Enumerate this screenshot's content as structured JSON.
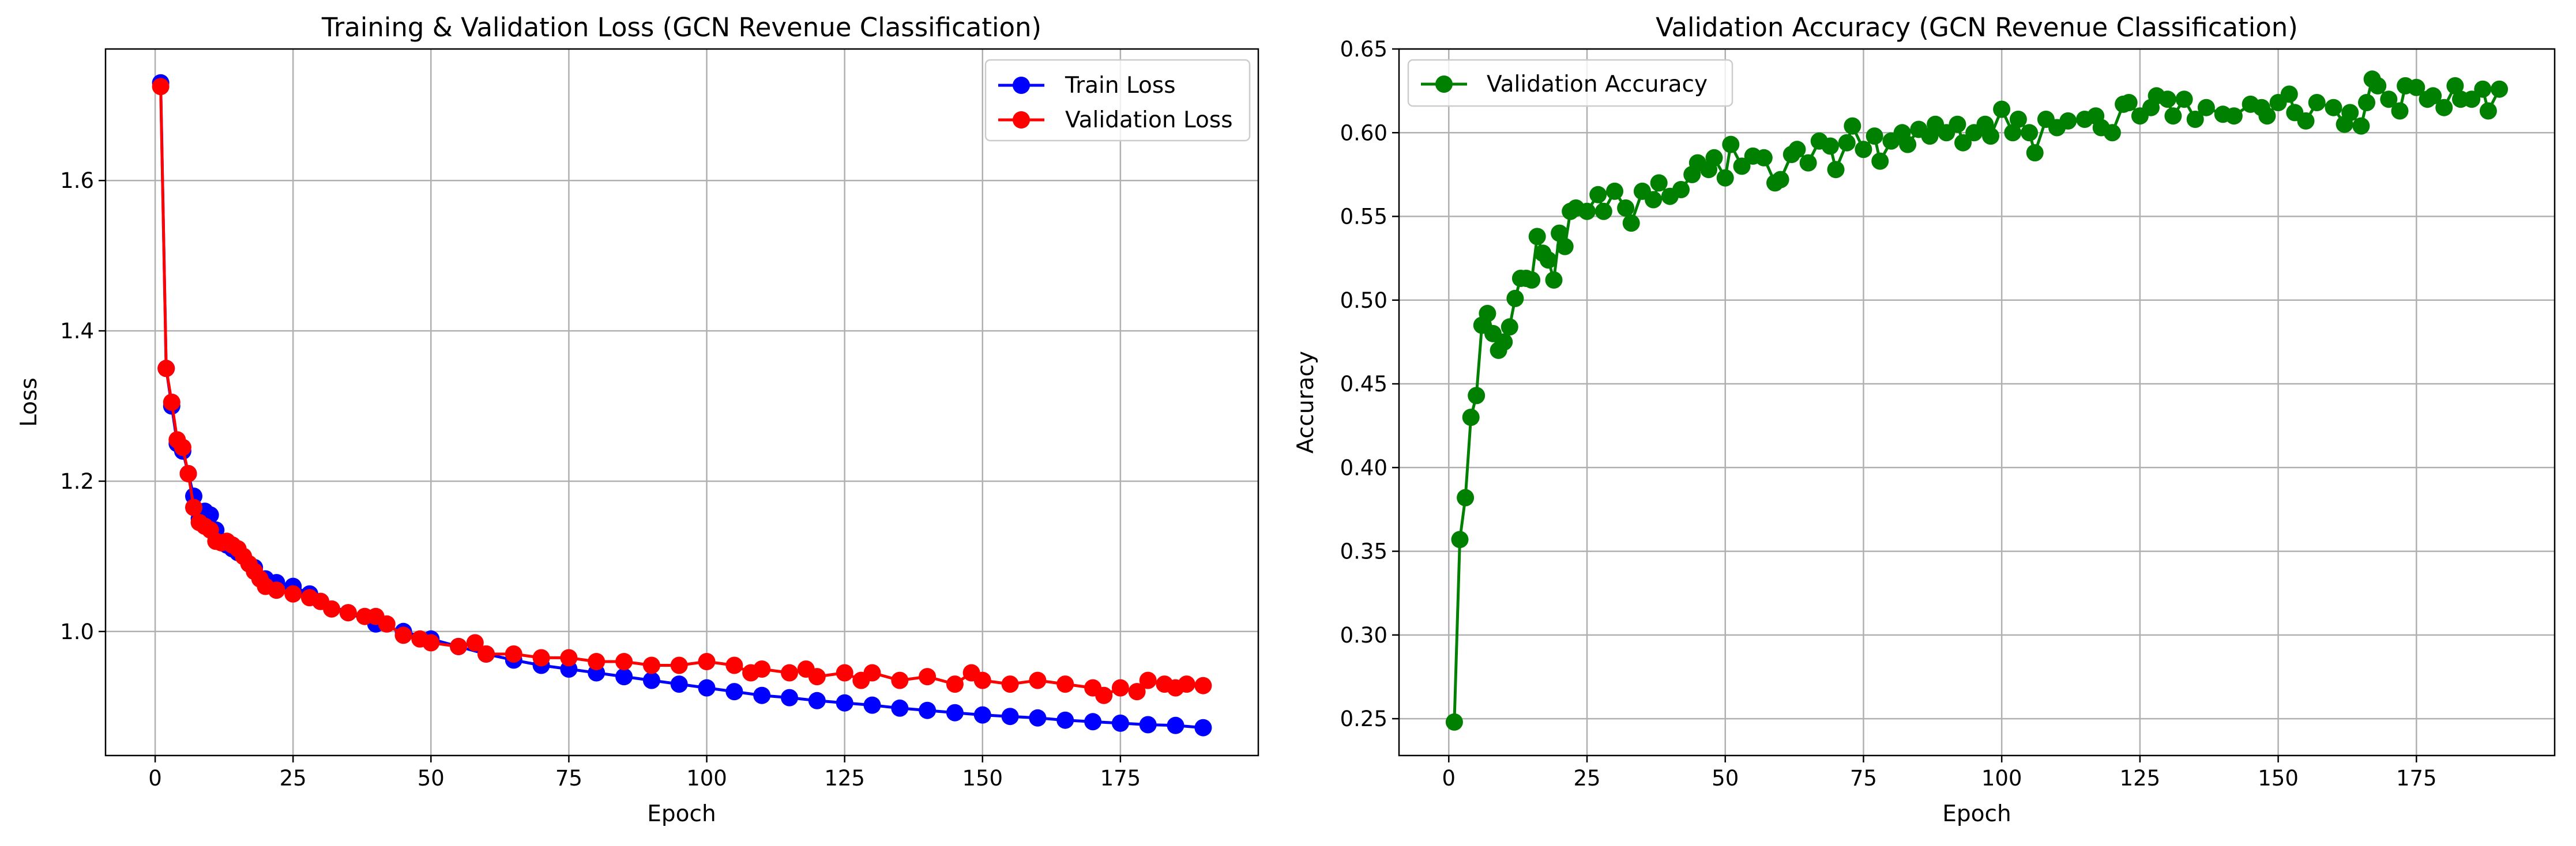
{
  "chart_data": [
    {
      "type": "line",
      "title": "Training & Validation Loss (GCN Revenue Classification)",
      "xlabel": "Epoch",
      "ylabel": "Loss",
      "xlim": [
        -9,
        200
      ],
      "ylim": [
        0.835,
        1.775
      ],
      "xticks": [
        0,
        25,
        50,
        75,
        100,
        125,
        150,
        175
      ],
      "yticks": [
        1.0,
        1.2,
        1.4,
        1.6
      ],
      "ytick_format": 1,
      "grid": true,
      "legend": "top-right",
      "series": [
        {
          "name": "Train Loss",
          "color": "#0000ff",
          "points": [
            [
              1,
              1.73
            ],
            [
              2,
              1.35
            ],
            [
              3,
              1.3
            ],
            [
              4,
              1.25
            ],
            [
              5,
              1.24
            ],
            [
              6,
              1.21
            ],
            [
              7,
              1.18
            ],
            [
              8,
              1.15
            ],
            [
              9,
              1.16
            ],
            [
              10,
              1.155
            ],
            [
              11,
              1.135
            ],
            [
              12,
              1.12
            ],
            [
              13,
              1.115
            ],
            [
              14,
              1.11
            ],
            [
              15,
              1.105
            ],
            [
              18,
              1.085
            ],
            [
              20,
              1.07
            ],
            [
              22,
              1.065
            ],
            [
              25,
              1.06
            ],
            [
              28,
              1.05
            ],
            [
              30,
              1.04
            ],
            [
              35,
              1.025
            ],
            [
              40,
              1.01
            ],
            [
              45,
              1.0
            ],
            [
              50,
              0.99
            ],
            [
              55,
              0.98
            ],
            [
              60,
              0.97
            ],
            [
              65,
              0.962
            ],
            [
              70,
              0.955
            ],
            [
              75,
              0.95
            ],
            [
              80,
              0.945
            ],
            [
              85,
              0.94
            ],
            [
              90,
              0.935
            ],
            [
              95,
              0.93
            ],
            [
              100,
              0.925
            ],
            [
              105,
              0.92
            ],
            [
              110,
              0.915
            ],
            [
              115,
              0.912
            ],
            [
              120,
              0.908
            ],
            [
              125,
              0.905
            ],
            [
              130,
              0.902
            ],
            [
              135,
              0.898
            ],
            [
              140,
              0.895
            ],
            [
              145,
              0.892
            ],
            [
              150,
              0.889
            ],
            [
              155,
              0.887
            ],
            [
              160,
              0.885
            ],
            [
              165,
              0.882
            ],
            [
              170,
              0.88
            ],
            [
              175,
              0.878
            ],
            [
              180,
              0.876
            ],
            [
              185,
              0.875
            ],
            [
              190,
              0.872
            ]
          ]
        },
        {
          "name": "Validation Loss",
          "color": "#ff0000",
          "points": [
            [
              1,
              1.725
            ],
            [
              2,
              1.35
            ],
            [
              3,
              1.305
            ],
            [
              4,
              1.255
            ],
            [
              5,
              1.245
            ],
            [
              6,
              1.21
            ],
            [
              7,
              1.165
            ],
            [
              8,
              1.145
            ],
            [
              9,
              1.14
            ],
            [
              10,
              1.135
            ],
            [
              11,
              1.12
            ],
            [
              12,
              1.118
            ],
            [
              13,
              1.12
            ],
            [
              14,
              1.115
            ],
            [
              15,
              1.11
            ],
            [
              16,
              1.1
            ],
            [
              17,
              1.09
            ],
            [
              18,
              1.08
            ],
            [
              19,
              1.07
            ],
            [
              20,
              1.06
            ],
            [
              22,
              1.055
            ],
            [
              25,
              1.05
            ],
            [
              28,
              1.045
            ],
            [
              30,
              1.04
            ],
            [
              32,
              1.03
            ],
            [
              35,
              1.025
            ],
            [
              38,
              1.02
            ],
            [
              40,
              1.02
            ],
            [
              42,
              1.01
            ],
            [
              45,
              0.995
            ],
            [
              48,
              0.99
            ],
            [
              50,
              0.985
            ],
            [
              55,
              0.98
            ],
            [
              58,
              0.985
            ],
            [
              60,
              0.97
            ],
            [
              65,
              0.97
            ],
            [
              70,
              0.965
            ],
            [
              75,
              0.965
            ],
            [
              80,
              0.96
            ],
            [
              85,
              0.96
            ],
            [
              90,
              0.955
            ],
            [
              95,
              0.955
            ],
            [
              100,
              0.96
            ],
            [
              105,
              0.955
            ],
            [
              108,
              0.945
            ],
            [
              110,
              0.95
            ],
            [
              115,
              0.945
            ],
            [
              118,
              0.95
            ],
            [
              120,
              0.94
            ],
            [
              125,
              0.945
            ],
            [
              128,
              0.935
            ],
            [
              130,
              0.945
            ],
            [
              135,
              0.935
            ],
            [
              140,
              0.94
            ],
            [
              145,
              0.93
            ],
            [
              148,
              0.945
            ],
            [
              150,
              0.935
            ],
            [
              155,
              0.93
            ],
            [
              160,
              0.935
            ],
            [
              165,
              0.93
            ],
            [
              170,
              0.925
            ],
            [
              172,
              0.915
            ],
            [
              175,
              0.925
            ],
            [
              178,
              0.92
            ],
            [
              180,
              0.935
            ],
            [
              183,
              0.93
            ],
            [
              185,
              0.925
            ],
            [
              187,
              0.93
            ],
            [
              190,
              0.928
            ]
          ]
        }
      ]
    },
    {
      "type": "line",
      "title": "Validation Accuracy (GCN Revenue Classification)",
      "xlabel": "Epoch",
      "ylabel": "Accuracy",
      "xlim": [
        -9,
        200
      ],
      "ylim": [
        0.228,
        0.65
      ],
      "xticks": [
        0,
        25,
        50,
        75,
        100,
        125,
        150,
        175
      ],
      "yticks": [
        0.25,
        0.3,
        0.35,
        0.4,
        0.45,
        0.5,
        0.55,
        0.6,
        0.65
      ],
      "ytick_format": 2,
      "grid": true,
      "legend": "top-left",
      "series": [
        {
          "name": "Validation Accuracy",
          "color": "#008000",
          "points": [
            [
              1,
              0.248
            ],
            [
              2,
              0.357
            ],
            [
              3,
              0.382
            ],
            [
              4,
              0.43
            ],
            [
              5,
              0.443
            ],
            [
              6,
              0.485
            ],
            [
              7,
              0.492
            ],
            [
              8,
              0.48
            ],
            [
              9,
              0.47
            ],
            [
              10,
              0.475
            ],
            [
              11,
              0.484
            ],
            [
              12,
              0.501
            ],
            [
              13,
              0.513
            ],
            [
              14,
              0.513
            ],
            [
              15,
              0.512
            ],
            [
              16,
              0.538
            ],
            [
              17,
              0.528
            ],
            [
              18,
              0.524
            ],
            [
              19,
              0.512
            ],
            [
              20,
              0.54
            ],
            [
              21,
              0.532
            ],
            [
              22,
              0.553
            ],
            [
              23,
              0.555
            ],
            [
              25,
              0.553
            ],
            [
              27,
              0.563
            ],
            [
              28,
              0.553
            ],
            [
              30,
              0.565
            ],
            [
              32,
              0.555
            ],
            [
              33,
              0.546
            ],
            [
              35,
              0.565
            ],
            [
              37,
              0.56
            ],
            [
              38,
              0.57
            ],
            [
              40,
              0.562
            ],
            [
              42,
              0.566
            ],
            [
              44,
              0.575
            ],
            [
              45,
              0.582
            ],
            [
              47,
              0.578
            ],
            [
              48,
              0.585
            ],
            [
              50,
              0.573
            ],
            [
              51,
              0.593
            ],
            [
              53,
              0.58
            ],
            [
              55,
              0.586
            ],
            [
              57,
              0.585
            ],
            [
              59,
              0.57
            ],
            [
              60,
              0.572
            ],
            [
              62,
              0.587
            ],
            [
              63,
              0.59
            ],
            [
              65,
              0.582
            ],
            [
              67,
              0.595
            ],
            [
              69,
              0.592
            ],
            [
              70,
              0.578
            ],
            [
              72,
              0.594
            ],
            [
              73,
              0.604
            ],
            [
              75,
              0.59
            ],
            [
              77,
              0.598
            ],
            [
              78,
              0.583
            ],
            [
              80,
              0.595
            ],
            [
              82,
              0.6
            ],
            [
              83,
              0.593
            ],
            [
              85,
              0.602
            ],
            [
              87,
              0.598
            ],
            [
              88,
              0.605
            ],
            [
              90,
              0.6
            ],
            [
              92,
              0.605
            ],
            [
              93,
              0.594
            ],
            [
              95,
              0.6
            ],
            [
              97,
              0.605
            ],
            [
              98,
              0.598
            ],
            [
              100,
              0.614
            ],
            [
              102,
              0.6
            ],
            [
              103,
              0.608
            ],
            [
              105,
              0.6
            ],
            [
              106,
              0.588
            ],
            [
              108,
              0.608
            ],
            [
              110,
              0.603
            ],
            [
              112,
              0.607
            ],
            [
              115,
              0.608
            ],
            [
              117,
              0.61
            ],
            [
              118,
              0.603
            ],
            [
              120,
              0.6
            ],
            [
              122,
              0.617
            ],
            [
              123,
              0.618
            ],
            [
              125,
              0.61
            ],
            [
              127,
              0.615
            ],
            [
              128,
              0.622
            ],
            [
              130,
              0.62
            ],
            [
              131,
              0.61
            ],
            [
              133,
              0.62
            ],
            [
              135,
              0.608
            ],
            [
              137,
              0.615
            ],
            [
              140,
              0.611
            ],
            [
              142,
              0.61
            ],
            [
              145,
              0.617
            ],
            [
              147,
              0.615
            ],
            [
              148,
              0.61
            ],
            [
              150,
              0.618
            ],
            [
              152,
              0.623
            ],
            [
              153,
              0.612
            ],
            [
              155,
              0.607
            ],
            [
              157,
              0.618
            ],
            [
              160,
              0.615
            ],
            [
              162,
              0.605
            ],
            [
              163,
              0.612
            ],
            [
              165,
              0.604
            ],
            [
              166,
              0.618
            ],
            [
              167,
              0.632
            ],
            [
              168,
              0.628
            ],
            [
              170,
              0.62
            ],
            [
              172,
              0.613
            ],
            [
              173,
              0.628
            ],
            [
              175,
              0.627
            ],
            [
              177,
              0.62
            ],
            [
              178,
              0.622
            ],
            [
              180,
              0.615
            ],
            [
              182,
              0.628
            ],
            [
              183,
              0.62
            ],
            [
              185,
              0.62
            ],
            [
              187,
              0.626
            ],
            [
              188,
              0.613
            ],
            [
              190,
              0.626
            ]
          ]
        }
      ]
    }
  ]
}
